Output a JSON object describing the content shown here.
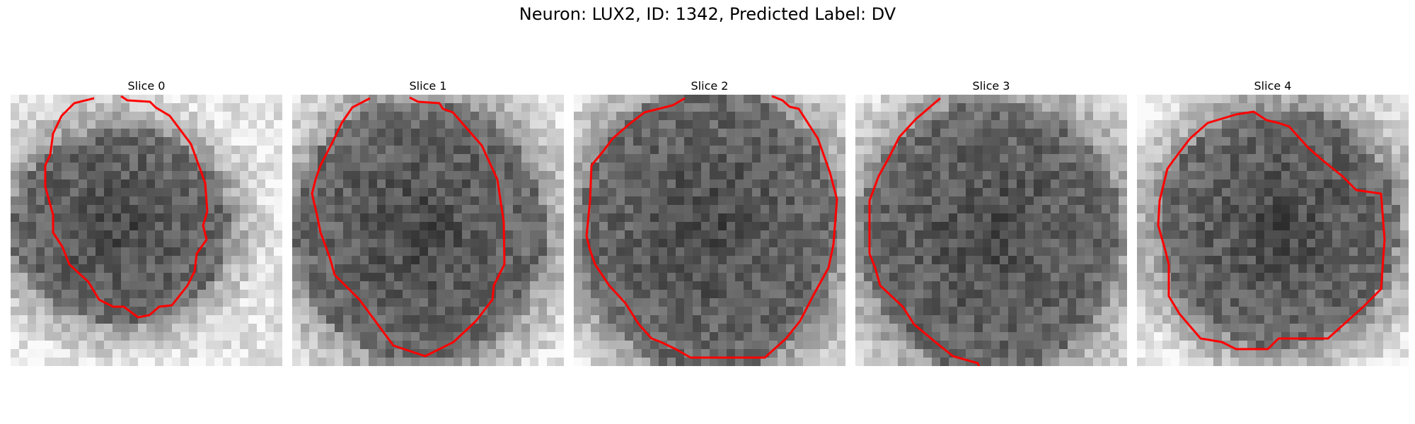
{
  "figure": {
    "title": "Neuron: LUX2, ID: 1342, Predicted Label: DV",
    "outline_color": "#ff0000",
    "colormap": "gray",
    "slices": [
      {
        "label": "Slice 0",
        "mask": "offset irregular polygon, open at top"
      },
      {
        "label": "Slice 1",
        "mask": "large octagon, open at top"
      },
      {
        "label": "Slice 2",
        "mask": "large octagon, open at top"
      },
      {
        "label": "Slice 3",
        "mask": "large octagon, open at bottom"
      },
      {
        "label": "Slice 4",
        "mask": "closed octagon"
      }
    ]
  }
}
